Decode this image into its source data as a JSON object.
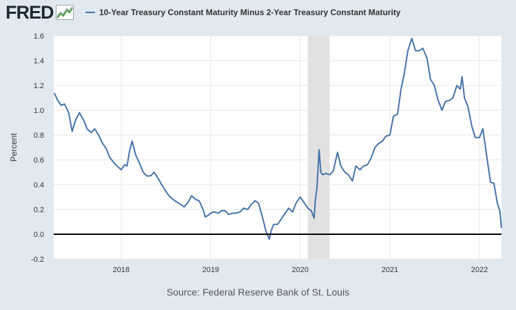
{
  "header": {
    "logo_text": "FRED",
    "series_label": "10-Year Treasury Constant Maturity Minus 2-Year Treasury Constant Maturity"
  },
  "footer": {
    "source": "Source: Federal Reserve Bank of St. Louis"
  },
  "icons": {
    "logo": "fred-graph-icon"
  },
  "colors": {
    "line": "#4572a7",
    "page_background": "#e1e9f0",
    "plot_background": "#ffffff",
    "recession": "#e1e1e1",
    "zero_line": "#000000"
  },
  "chart_data": {
    "type": "line",
    "title": "",
    "xlabel": "",
    "ylabel": "Percent",
    "xlim": [
      "2017-04-01",
      "2022-04-01"
    ],
    "ylim": [
      -0.2,
      1.6
    ],
    "y_ticks": [
      "-0.2",
      "0.0",
      "0.2",
      "0.4",
      "0.6",
      "0.8",
      "1.0",
      "1.2",
      "1.4",
      "1.6"
    ],
    "x_ticks": [
      "2018",
      "2019",
      "2020",
      "2021",
      "2022"
    ],
    "grid": true,
    "legend": "top-left",
    "shaded_periods": [
      {
        "start": "2020-02-01",
        "end": "2020-04-30"
      }
    ],
    "reference_line": 0.0,
    "series": [
      {
        "name": "10-Year Treasury Constant Maturity Minus 2-Year Treasury Constant Maturity",
        "points": [
          [
            "2017-04-03",
            1.14
          ],
          [
            "2017-04-17",
            1.08
          ],
          [
            "2017-05-01",
            1.04
          ],
          [
            "2017-05-15",
            1.05
          ],
          [
            "2017-06-01",
            0.98
          ],
          [
            "2017-06-15",
            0.83
          ],
          [
            "2017-07-01",
            0.93
          ],
          [
            "2017-07-15",
            0.98
          ],
          [
            "2017-08-01",
            0.92
          ],
          [
            "2017-08-15",
            0.85
          ],
          [
            "2017-09-01",
            0.82
          ],
          [
            "2017-09-15",
            0.85
          ],
          [
            "2017-10-01",
            0.8
          ],
          [
            "2017-10-15",
            0.74
          ],
          [
            "2017-11-01",
            0.69
          ],
          [
            "2017-11-15",
            0.62
          ],
          [
            "2017-12-01",
            0.58
          ],
          [
            "2017-12-15",
            0.55
          ],
          [
            "2018-01-01",
            0.52
          ],
          [
            "2018-01-15",
            0.56
          ],
          [
            "2018-01-25",
            0.55
          ],
          [
            "2018-02-05",
            0.68
          ],
          [
            "2018-02-15",
            0.75
          ],
          [
            "2018-03-01",
            0.64
          ],
          [
            "2018-03-15",
            0.58
          ],
          [
            "2018-04-01",
            0.5
          ],
          [
            "2018-04-15",
            0.47
          ],
          [
            "2018-05-01",
            0.47
          ],
          [
            "2018-05-15",
            0.5
          ],
          [
            "2018-06-01",
            0.45
          ],
          [
            "2018-06-15",
            0.4
          ],
          [
            "2018-07-01",
            0.35
          ],
          [
            "2018-07-15",
            0.31
          ],
          [
            "2018-08-01",
            0.28
          ],
          [
            "2018-08-15",
            0.26
          ],
          [
            "2018-09-01",
            0.24
          ],
          [
            "2018-09-15",
            0.22
          ],
          [
            "2018-10-01",
            0.26
          ],
          [
            "2018-10-15",
            0.31
          ],
          [
            "2018-11-01",
            0.28
          ],
          [
            "2018-11-15",
            0.27
          ],
          [
            "2018-12-01",
            0.2
          ],
          [
            "2018-12-10",
            0.14
          ],
          [
            "2018-12-20",
            0.15
          ],
          [
            "2019-01-01",
            0.17
          ],
          [
            "2019-01-15",
            0.18
          ],
          [
            "2019-02-01",
            0.17
          ],
          [
            "2019-02-15",
            0.19
          ],
          [
            "2019-03-01",
            0.19
          ],
          [
            "2019-03-15",
            0.16
          ],
          [
            "2019-04-01",
            0.17
          ],
          [
            "2019-04-15",
            0.17
          ],
          [
            "2019-05-01",
            0.18
          ],
          [
            "2019-05-15",
            0.21
          ],
          [
            "2019-06-01",
            0.2
          ],
          [
            "2019-06-15",
            0.24
          ],
          [
            "2019-07-01",
            0.27
          ],
          [
            "2019-07-15",
            0.25
          ],
          [
            "2019-08-01",
            0.13
          ],
          [
            "2019-08-15",
            0.02
          ],
          [
            "2019-08-28",
            -0.04
          ],
          [
            "2019-09-05",
            0.03
          ],
          [
            "2019-09-15",
            0.08
          ],
          [
            "2019-10-01",
            0.08
          ],
          [
            "2019-10-15",
            0.12
          ],
          [
            "2019-11-01",
            0.17
          ],
          [
            "2019-11-15",
            0.21
          ],
          [
            "2019-12-01",
            0.18
          ],
          [
            "2019-12-15",
            0.25
          ],
          [
            "2020-01-01",
            0.3
          ],
          [
            "2020-01-15",
            0.26
          ],
          [
            "2020-02-01",
            0.21
          ],
          [
            "2020-02-15",
            0.19
          ],
          [
            "2020-02-27",
            0.13
          ],
          [
            "2020-03-03",
            0.28
          ],
          [
            "2020-03-09",
            0.37
          ],
          [
            "2020-03-18",
            0.68
          ],
          [
            "2020-03-25",
            0.5
          ],
          [
            "2020-04-01",
            0.48
          ],
          [
            "2020-04-15",
            0.49
          ],
          [
            "2020-05-01",
            0.48
          ],
          [
            "2020-05-15",
            0.51
          ],
          [
            "2020-06-01",
            0.66
          ],
          [
            "2020-06-15",
            0.55
          ],
          [
            "2020-07-01",
            0.5
          ],
          [
            "2020-07-15",
            0.48
          ],
          [
            "2020-08-01",
            0.43
          ],
          [
            "2020-08-15",
            0.55
          ],
          [
            "2020-09-01",
            0.52
          ],
          [
            "2020-09-15",
            0.55
          ],
          [
            "2020-10-01",
            0.56
          ],
          [
            "2020-10-15",
            0.61
          ],
          [
            "2020-11-01",
            0.7
          ],
          [
            "2020-11-15",
            0.73
          ],
          [
            "2020-12-01",
            0.75
          ],
          [
            "2020-12-15",
            0.79
          ],
          [
            "2021-01-01",
            0.8
          ],
          [
            "2021-01-15",
            0.95
          ],
          [
            "2021-02-01",
            0.97
          ],
          [
            "2021-02-15",
            1.17
          ],
          [
            "2021-03-01",
            1.3
          ],
          [
            "2021-03-15",
            1.48
          ],
          [
            "2021-03-31",
            1.58
          ],
          [
            "2021-04-15",
            1.48
          ],
          [
            "2021-05-01",
            1.48
          ],
          [
            "2021-05-15",
            1.5
          ],
          [
            "2021-06-01",
            1.42
          ],
          [
            "2021-06-15",
            1.25
          ],
          [
            "2021-07-01",
            1.2
          ],
          [
            "2021-07-15",
            1.09
          ],
          [
            "2021-08-01",
            1.0
          ],
          [
            "2021-08-15",
            1.07
          ],
          [
            "2021-09-01",
            1.08
          ],
          [
            "2021-09-15",
            1.1
          ],
          [
            "2021-10-01",
            1.2
          ],
          [
            "2021-10-15",
            1.17
          ],
          [
            "2021-10-22",
            1.27
          ],
          [
            "2021-11-01",
            1.1
          ],
          [
            "2021-11-15",
            1.03
          ],
          [
            "2021-12-01",
            0.87
          ],
          [
            "2021-12-15",
            0.78
          ],
          [
            "2022-01-01",
            0.78
          ],
          [
            "2022-01-15",
            0.85
          ],
          [
            "2022-02-01",
            0.61
          ],
          [
            "2022-02-15",
            0.42
          ],
          [
            "2022-03-01",
            0.41
          ],
          [
            "2022-03-15",
            0.25
          ],
          [
            "2022-03-25",
            0.19
          ],
          [
            "2022-04-01",
            0.05
          ]
        ]
      }
    ]
  }
}
